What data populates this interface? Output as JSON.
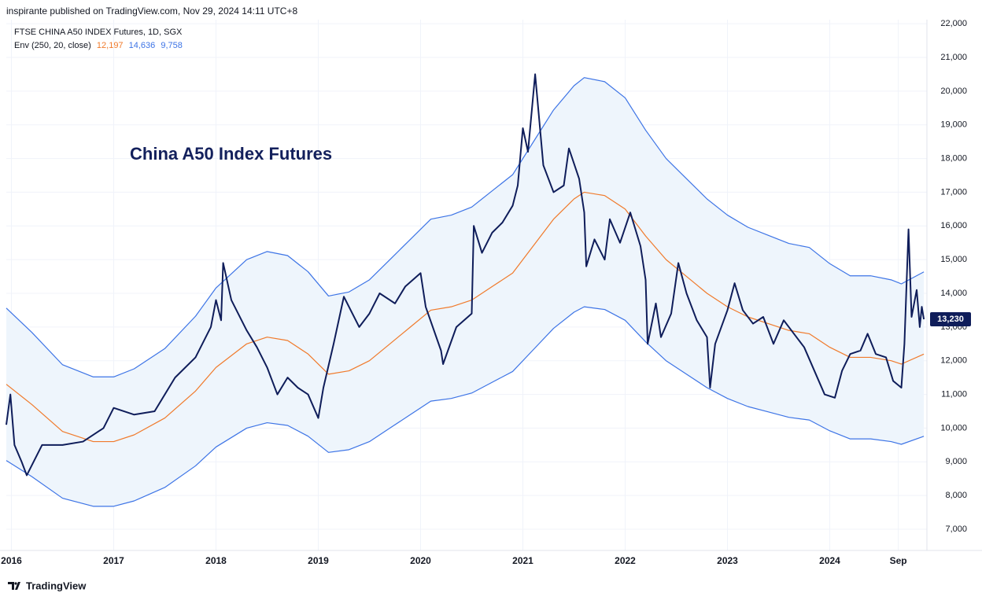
{
  "header": {
    "published": "inspirante published on TradingView.com, Nov 29, 2024 14:11 UTC+8",
    "symbol": "FTSE CHINA A50 INDEX Futures, 1D, SGX",
    "indicator": "Env (250, 20, close)",
    "brand": "TradingView"
  },
  "chart_data": {
    "type": "line",
    "annotation": "China A50 Index Futures",
    "xlim": [
      2015.95,
      2024.95
    ],
    "xticks": [
      2016,
      2017,
      2018,
      2019,
      2020,
      2021,
      2022,
      2023,
      2024,
      {
        "value": 2024.67,
        "label": "Sep"
      }
    ],
    "ylim": [
      6370,
      22120
    ],
    "yticks": [
      {
        "value": 7000,
        "label": "7,000"
      },
      {
        "value": 8000,
        "label": "8,000"
      },
      {
        "value": 9000,
        "label": "9,000"
      },
      {
        "value": 10000,
        "label": "10,000"
      },
      {
        "value": 11000,
        "label": "11,000"
      },
      {
        "value": 12000,
        "label": "12,000"
      },
      {
        "value": 13000,
        "label": "13,000"
      },
      {
        "value": 14000,
        "label": "14,000"
      },
      {
        "value": 15000,
        "label": "15,000"
      },
      {
        "value": 16000,
        "label": "16,000"
      },
      {
        "value": 17000,
        "label": "17,000"
      },
      {
        "value": 18000,
        "label": "18,000"
      },
      {
        "value": 19000,
        "label": "19,000"
      },
      {
        "value": 20000,
        "label": "20,000"
      },
      {
        "value": 21000,
        "label": "21,000"
      },
      {
        "value": 22000,
        "label": "22,000"
      }
    ],
    "grid": true,
    "envelope_fill": "#eef5fc",
    "series": [
      {
        "name": "FTSE CHINA A50 INDEX Futures",
        "color": "#0f1d5a",
        "last_label": "13,230",
        "x": [
          2015.95,
          2015.99,
          2016.03,
          2016.1,
          2016.15,
          2016.3,
          2016.5,
          2016.7,
          2016.9,
          2017.0,
          2017.2,
          2017.4,
          2017.6,
          2017.8,
          2017.95,
          2018.0,
          2018.05,
          2018.07,
          2018.15,
          2018.3,
          2018.4,
          2018.5,
          2018.6,
          2018.7,
          2018.8,
          2018.9,
          2019.0,
          2019.05,
          2019.15,
          2019.25,
          2019.4,
          2019.5,
          2019.6,
          2019.75,
          2019.85,
          2020.0,
          2020.05,
          2020.2,
          2020.22,
          2020.35,
          2020.5,
          2020.52,
          2020.6,
          2020.7,
          2020.8,
          2020.9,
          2020.95,
          2021.0,
          2021.05,
          2021.12,
          2021.2,
          2021.3,
          2021.4,
          2021.45,
          2021.55,
          2021.6,
          2021.62,
          2021.7,
          2021.8,
          2021.85,
          2021.95,
          2022.05,
          2022.15,
          2022.2,
          2022.22,
          2022.3,
          2022.35,
          2022.45,
          2022.52,
          2022.6,
          2022.7,
          2022.8,
          2022.83,
          2022.88,
          2023.0,
          2023.07,
          2023.15,
          2023.25,
          2023.35,
          2023.45,
          2023.55,
          2023.65,
          2023.75,
          2023.85,
          2023.95,
          2024.05,
          2024.12,
          2024.2,
          2024.3,
          2024.37,
          2024.45,
          2024.55,
          2024.62,
          2024.7,
          2024.73,
          2024.77,
          2024.8,
          2024.85,
          2024.88,
          2024.9,
          2024.92
        ],
        "values": [
          10100,
          11000,
          9500,
          9000,
          8600,
          9500,
          9500,
          9600,
          10000,
          10600,
          10400,
          10500,
          11500,
          12100,
          13000,
          13800,
          13200,
          14900,
          13800,
          12900,
          12400,
          11800,
          11000,
          11500,
          11200,
          11000,
          10300,
          11200,
          12500,
          13900,
          13000,
          13400,
          14000,
          13700,
          14200,
          14600,
          13600,
          12300,
          11900,
          13000,
          13400,
          16000,
          15200,
          15800,
          16100,
          16600,
          17200,
          18900,
          18200,
          20500,
          17800,
          17000,
          17200,
          18300,
          17400,
          16400,
          14800,
          15600,
          15000,
          16200,
          15500,
          16400,
          15400,
          14400,
          12500,
          13700,
          12700,
          13400,
          14900,
          14000,
          13200,
          12700,
          11200,
          12500,
          13500,
          14300,
          13500,
          13100,
          13300,
          12500,
          13200,
          12800,
          12400,
          11700,
          11000,
          10900,
          11700,
          12200,
          12300,
          12800,
          12200,
          12100,
          11400,
          11200,
          12500,
          15900,
          13300,
          14100,
          13000,
          13600,
          13230
        ]
      },
      {
        "name": "Basis",
        "color": "#f07a2b",
        "last_label": "12,197",
        "x": [
          2015.95,
          2016.2,
          2016.5,
          2016.8,
          2017.0,
          2017.2,
          2017.5,
          2017.8,
          2018.0,
          2018.3,
          2018.5,
          2018.7,
          2018.9,
          2019.1,
          2019.3,
          2019.5,
          2019.7,
          2019.9,
          2020.1,
          2020.3,
          2020.5,
          2020.7,
          2020.9,
          2021.1,
          2021.3,
          2021.5,
          2021.6,
          2021.8,
          2022.0,
          2022.2,
          2022.4,
          2022.6,
          2022.8,
          2023.0,
          2023.2,
          2023.4,
          2023.6,
          2023.8,
          2024.0,
          2024.2,
          2024.4,
          2024.6,
          2024.7,
          2024.92
        ],
        "values": [
          11300,
          10700,
          9900,
          9600,
          9600,
          9800,
          10300,
          11100,
          11800,
          12500,
          12700,
          12600,
          12200,
          11600,
          11700,
          12000,
          12500,
          13000,
          13500,
          13600,
          13800,
          14200,
          14600,
          15400,
          16200,
          16800,
          17000,
          16900,
          16500,
          15700,
          15000,
          14500,
          14000,
          13600,
          13300,
          13100,
          12900,
          12800,
          12400,
          12100,
          12100,
          12000,
          11900,
          12197
        ]
      },
      {
        "name": "Upper",
        "color": "#3d74e6",
        "last_label": "14,636",
        "x": [
          2015.95,
          2016.2,
          2016.5,
          2016.8,
          2017.0,
          2017.2,
          2017.5,
          2017.8,
          2018.0,
          2018.3,
          2018.5,
          2018.7,
          2018.9,
          2019.1,
          2019.3,
          2019.5,
          2019.7,
          2019.9,
          2020.1,
          2020.3,
          2020.5,
          2020.7,
          2020.9,
          2021.1,
          2021.3,
          2021.5,
          2021.6,
          2021.8,
          2022.0,
          2022.2,
          2022.4,
          2022.6,
          2022.8,
          2023.0,
          2023.2,
          2023.4,
          2023.6,
          2023.8,
          2024.0,
          2024.2,
          2024.4,
          2024.6,
          2024.7,
          2024.92
        ],
        "values": [
          13560,
          12840,
          11880,
          11520,
          11520,
          11760,
          12360,
          13320,
          14160,
          15000,
          15240,
          15120,
          14640,
          13920,
          14040,
          14400,
          15000,
          15600,
          16200,
          16320,
          16560,
          17040,
          17520,
          18480,
          19440,
          20160,
          20400,
          20280,
          19800,
          18840,
          18000,
          17400,
          16800,
          16320,
          15960,
          15720,
          15480,
          15360,
          14880,
          14520,
          14520,
          14400,
          14280,
          14636
        ]
      },
      {
        "name": "Lower",
        "color": "#3d74e6",
        "last_label": "9,758",
        "x": [
          2015.95,
          2016.2,
          2016.5,
          2016.8,
          2017.0,
          2017.2,
          2017.5,
          2017.8,
          2018.0,
          2018.3,
          2018.5,
          2018.7,
          2018.9,
          2019.1,
          2019.3,
          2019.5,
          2019.7,
          2019.9,
          2020.1,
          2020.3,
          2020.5,
          2020.7,
          2020.9,
          2021.1,
          2021.3,
          2021.5,
          2021.6,
          2021.8,
          2022.0,
          2022.2,
          2022.4,
          2022.6,
          2022.8,
          2023.0,
          2023.2,
          2023.4,
          2023.6,
          2023.8,
          2024.0,
          2024.2,
          2024.4,
          2024.6,
          2024.7,
          2024.92
        ],
        "values": [
          9040,
          8560,
          7920,
          7680,
          7680,
          7840,
          8240,
          8880,
          9440,
          10000,
          10160,
          10080,
          9760,
          9280,
          9360,
          9600,
          10000,
          10400,
          10800,
          10880,
          11040,
          11360,
          11680,
          12320,
          12960,
          13440,
          13600,
          13520,
          13200,
          12560,
          12000,
          11600,
          11200,
          10880,
          10640,
          10480,
          10320,
          10240,
          9920,
          9680,
          9680,
          9600,
          9520,
          9758
        ]
      }
    ]
  }
}
